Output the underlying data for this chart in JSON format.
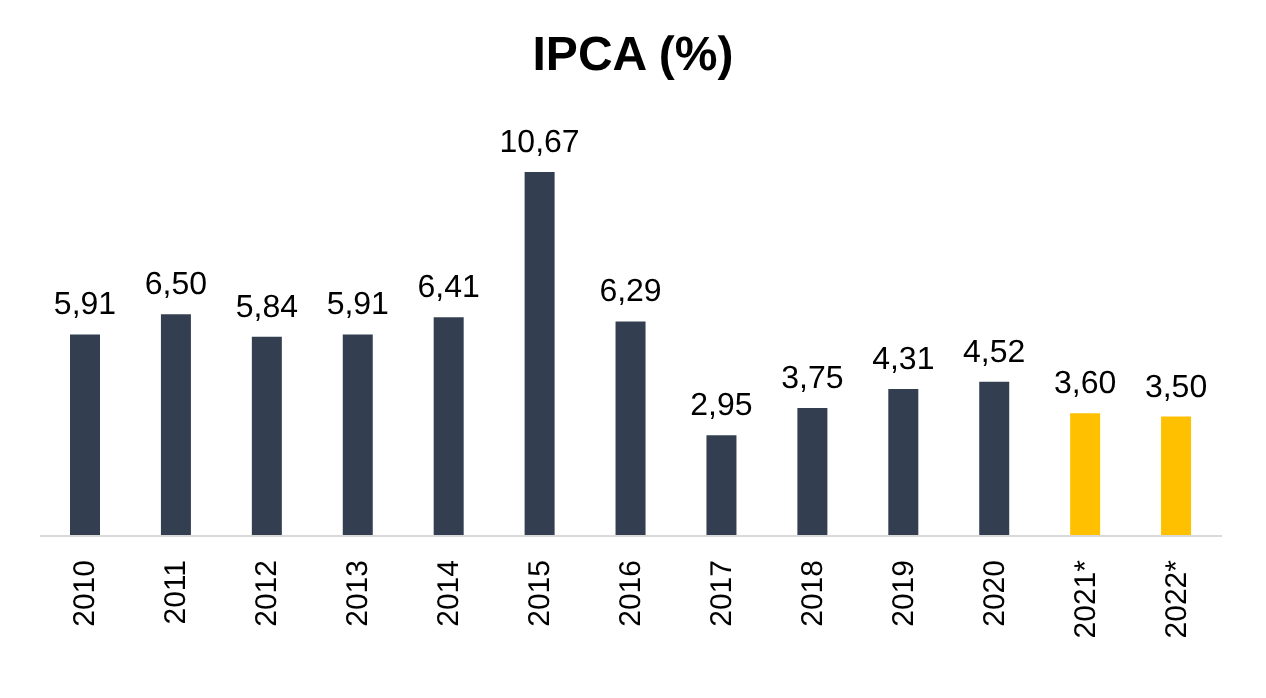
{
  "chart_data": {
    "type": "bar",
    "title": "IPCA (%)",
    "categories": [
      "2010",
      "2011",
      "2012",
      "2013",
      "2014",
      "2015",
      "2016",
      "2017",
      "2018",
      "2019",
      "2020",
      "2021*",
      "2022*"
    ],
    "values": [
      5.91,
      6.5,
      5.84,
      5.91,
      6.41,
      10.67,
      6.29,
      2.95,
      3.75,
      4.31,
      4.52,
      3.6,
      3.5
    ],
    "colors": [
      "#333f50",
      "#333f50",
      "#333f50",
      "#333f50",
      "#333f50",
      "#333f50",
      "#333f50",
      "#333f50",
      "#333f50",
      "#333f50",
      "#333f50",
      "#ffc000",
      "#ffc000"
    ],
    "value_labels": [
      "5,91",
      "6,50",
      "5,84",
      "5,91",
      "6,41",
      "10,67",
      "6,29",
      "2,95",
      "3,75",
      "4,31",
      "4,52",
      "3,60",
      "3,50"
    ],
    "grid": false,
    "legend": false
  }
}
